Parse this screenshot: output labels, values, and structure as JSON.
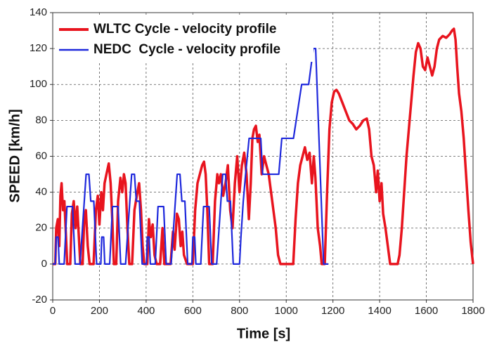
{
  "chart_data": {
    "type": "line",
    "xlabel": "Time  [s]",
    "ylabel": "SPEED [km/h]",
    "xlim": [
      0,
      1800
    ],
    "xticks": [
      0,
      200,
      400,
      600,
      800,
      1000,
      1200,
      1400,
      1600,
      1800
    ],
    "ylim": [
      -20,
      140
    ],
    "yticks": [
      -20,
      0,
      20,
      40,
      60,
      80,
      100,
      120,
      140
    ],
    "grid": true,
    "legend": "upper left",
    "series": [
      {
        "name": "WLTC Cycle - velocity profile",
        "color": "#e8141e",
        "x": [
          0,
          11,
          15,
          22,
          28,
          33,
          38,
          44,
          50,
          58,
          62,
          75,
          82,
          90,
          98,
          105,
          112,
          118,
          128,
          135,
          142,
          150,
          158,
          175,
          185,
          193,
          200,
          208,
          215,
          222,
          230,
          240,
          248,
          255,
          262,
          272,
          280,
          290,
          298,
          305,
          312,
          320,
          328,
          340,
          350,
          360,
          370,
          378,
          385,
          392,
          405,
          412,
          420,
          428,
          436,
          445,
          460,
          470,
          478,
          505,
          515,
          522,
          532,
          540,
          548,
          555,
          562,
          575,
          589,
          600,
          610,
          620,
          630,
          640,
          648,
          655,
          662,
          670,
          685,
          695,
          705,
          712,
          720,
          730,
          740,
          750,
          760,
          770,
          780,
          790,
          800,
          810,
          820,
          830,
          840,
          848,
          855,
          862,
          870,
          878,
          885,
          895,
          905,
          915,
          925,
          935,
          945,
          955,
          965,
          975,
          1000,
          1022,
          1030,
          1040,
          1050,
          1060,
          1070,
          1080,
          1090,
          1100,
          1110,
          1118,
          1125,
          1135,
          1145,
          1152,
          1165,
          1175,
          1185,
          1195,
          1205,
          1215,
          1225,
          1240,
          1255,
          1270,
          1285,
          1300,
          1315,
          1330,
          1345,
          1355,
          1365,
          1375,
          1385,
          1392,
          1400,
          1408,
          1415,
          1425,
          1435,
          1445,
          1477,
          1485,
          1495,
          1505,
          1515,
          1525,
          1535,
          1545,
          1555,
          1565,
          1575,
          1585,
          1595,
          1605,
          1615,
          1625,
          1635,
          1645,
          1655,
          1670,
          1685,
          1700,
          1710,
          1718,
          1725,
          1732,
          1740,
          1750,
          1760,
          1770,
          1780,
          1790,
          1800
        ],
        "values": [
          0,
          0,
          20,
          25,
          10,
          38,
          45,
          30,
          35,
          12,
          0,
          0,
          28,
          35,
          20,
          32,
          15,
          0,
          0,
          25,
          30,
          10,
          0,
          0,
          30,
          38,
          22,
          40,
          30,
          45,
          50,
          56,
          45,
          25,
          0,
          0,
          35,
          48,
          40,
          50,
          45,
          20,
          0,
          0,
          30,
          38,
          45,
          30,
          10,
          0,
          0,
          25,
          15,
          22,
          5,
          0,
          0,
          20,
          0,
          0,
          18,
          8,
          28,
          25,
          10,
          18,
          5,
          0,
          0,
          0,
          30,
          45,
          50,
          55,
          57,
          50,
          30,
          0,
          0,
          35,
          50,
          45,
          50,
          38,
          45,
          55,
          30,
          20,
          45,
          60,
          40,
          55,
          62,
          50,
          25,
          45,
          70,
          75,
          77,
          68,
          72,
          50,
          60,
          55,
          50,
          40,
          30,
          20,
          5,
          0,
          0,
          0,
          0,
          25,
          45,
          55,
          60,
          65,
          58,
          62,
          45,
          60,
          48,
          20,
          10,
          0,
          0,
          40,
          75,
          90,
          96,
          97,
          95,
          90,
          85,
          80,
          78,
          75,
          77,
          80,
          81,
          75,
          60,
          55,
          40,
          52,
          35,
          45,
          28,
          20,
          10,
          0,
          0,
          5,
          20,
          40,
          60,
          75,
          90,
          105,
          118,
          123,
          120,
          110,
          108,
          115,
          110,
          105,
          110,
          120,
          125,
          127,
          126,
          128,
          130,
          131,
          125,
          110,
          95,
          85,
          70,
          50,
          30,
          12,
          0
        ]
      },
      {
        "name": "NEDC  Cycle - velocity profile",
        "color": "#1e28dc",
        "x": [
          0,
          11,
          15,
          23,
          28,
          49,
          61,
          85,
          96,
          117,
          143,
          155,
          163,
          176,
          188,
          195,
          206,
          210,
          218,
          223,
          244,
          256,
          280,
          291,
          312,
          338,
          350,
          358,
          371,
          383,
          390,
          401,
          405,
          413,
          418,
          439,
          451,
          475,
          486,
          507,
          533,
          545,
          553,
          566,
          578,
          585,
          596,
          600,
          608,
          613,
          634,
          646,
          670,
          681,
          702,
          728,
          740,
          748,
          761,
          773,
          780,
          800,
          806,
          816,
          826,
          841,
          891,
          899,
          968,
          981,
          1031,
          1066,
          1096,
          1116,
          1126,
          1160,
          1180
        ],
        "values": [
          0,
          0,
          15,
          15,
          0,
          0,
          32,
          32,
          0,
          0,
          50,
          50,
          35,
          35,
          0,
          0,
          0,
          15,
          15,
          0,
          0,
          32,
          32,
          0,
          0,
          50,
          50,
          35,
          35,
          0,
          0,
          0,
          15,
          15,
          0,
          0,
          32,
          32,
          0,
          0,
          50,
          50,
          35,
          35,
          0,
          0,
          0,
          15,
          15,
          0,
          0,
          32,
          32,
          0,
          0,
          50,
          50,
          35,
          35,
          0,
          0,
          0,
          15,
          35,
          50,
          70,
          70,
          50,
          50,
          70,
          70,
          100,
          100,
          120,
          120,
          0,
          0
        ]
      }
    ]
  }
}
